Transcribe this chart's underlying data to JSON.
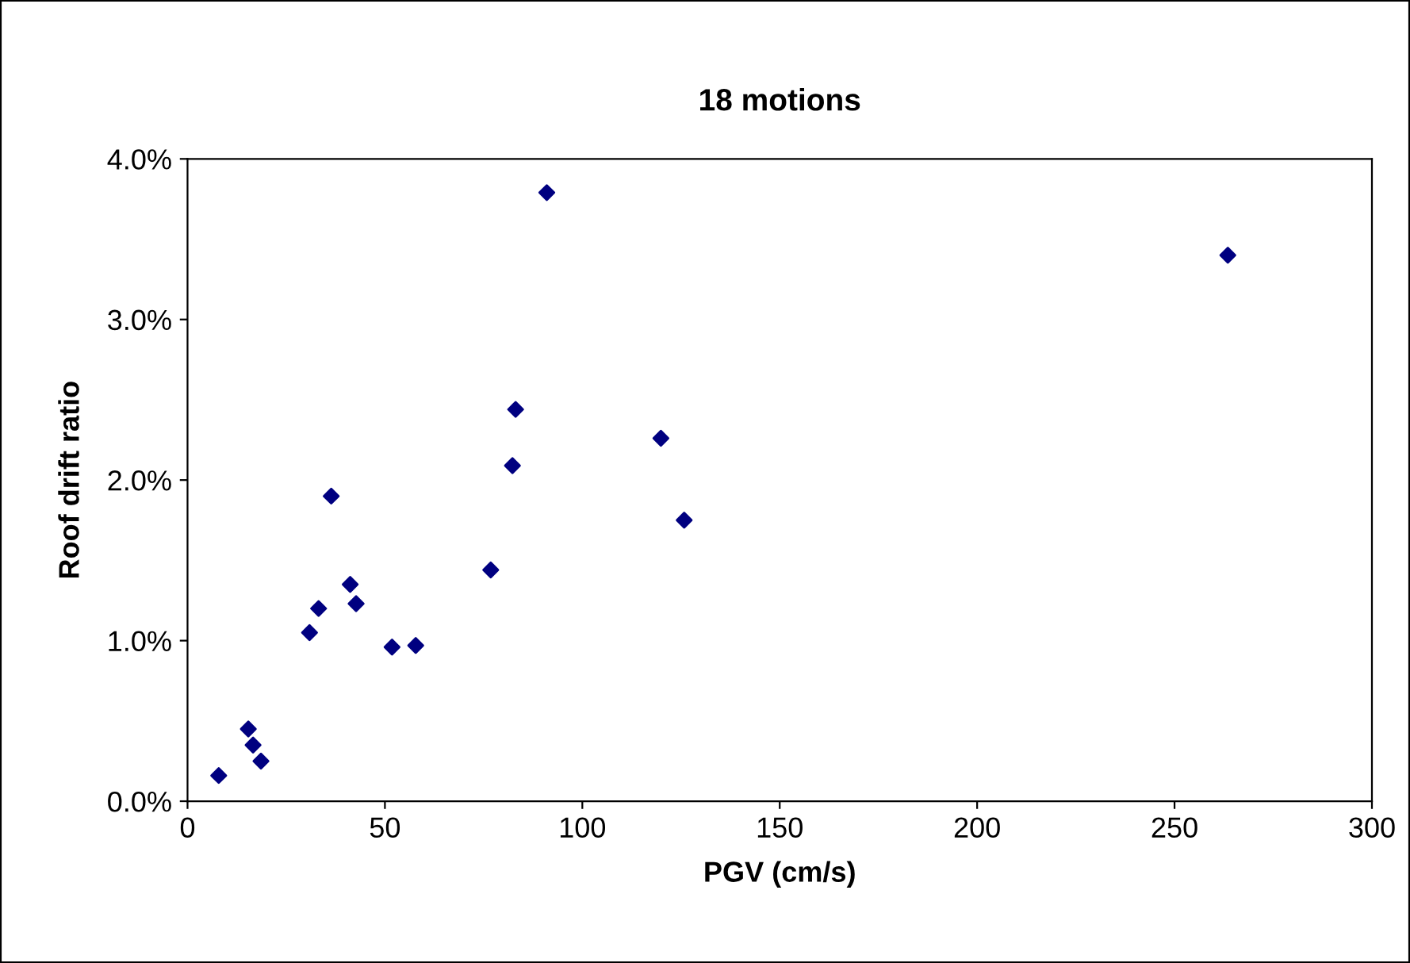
{
  "chart_data": {
    "type": "scatter",
    "title": "18 motions",
    "xlabel": "PGV (cm/s)",
    "ylabel": "Roof drift ratio",
    "x": [
      7.9,
      15.4,
      16.6,
      18.6,
      30.9,
      33.2,
      36.4,
      41.2,
      42.7,
      51.8,
      57.8,
      76.8,
      82.3,
      83.1,
      91.0,
      119.9,
      125.8,
      263.5
    ],
    "series": [
      {
        "color": "#000080",
        "values": [
          0.16,
          0.45,
          0.35,
          0.25,
          1.05,
          1.2,
          1.9,
          1.35,
          1.23,
          0.96,
          0.97,
          1.44,
          2.09,
          2.44,
          3.79,
          2.26,
          1.75,
          3.4
        ]
      }
    ],
    "marker": "diamond",
    "grid": false,
    "legend": false,
    "xlim": [
      0,
      300
    ],
    "xticks": [
      0,
      50,
      100,
      150,
      200,
      250,
      300
    ],
    "ylim": [
      0,
      4
    ],
    "yticks": [
      {
        "value": 0,
        "label": "0.0%"
      },
      {
        "value": 1,
        "label": "1.0%"
      },
      {
        "value": 2,
        "label": "2.0%"
      },
      {
        "value": 3,
        "label": "3.0%"
      },
      {
        "value": 4,
        "label": "4.0%"
      }
    ]
  }
}
